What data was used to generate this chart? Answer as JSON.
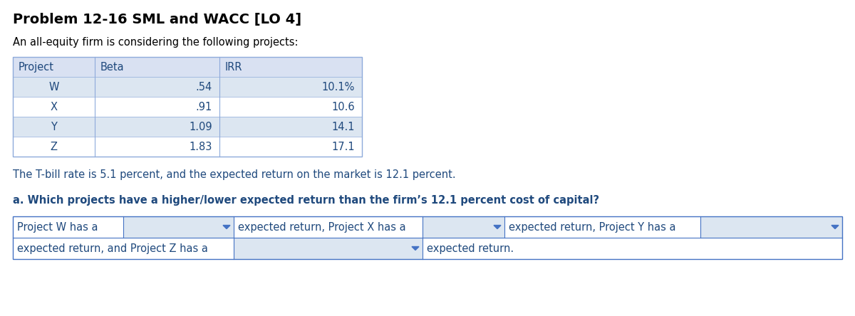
{
  "title": "Problem 12-16 SML and WACC [LO 4]",
  "subtitle": "An all-equity firm is considering the following projects:",
  "table_headers": [
    "Project",
    "Beta",
    "IRR"
  ],
  "table_rows": [
    [
      "W",
      ".54",
      "10.1%"
    ],
    [
      "X",
      ".91",
      "10.6"
    ],
    [
      "Y",
      "1.09",
      "14.1"
    ],
    [
      "Z",
      "1.83",
      "17.1"
    ]
  ],
  "tbill_text": "The T-bill rate is 5.1 percent, and the expected return on the market is 12.1 percent.",
  "question_a": "a. Which projects have a higher/lower expected return than the firm’s 12.1 percent cost of capital?",
  "answer_row1_col1": "Project W has a",
  "answer_row1_col2": "expected return, Project X has a",
  "answer_row1_col3": "expected return, Project Y has a",
  "answer_row2_col1": "expected return, and Project Z has a",
  "answer_row2_col3": "expected return.",
  "bg_color": "#ffffff",
  "header_bg": "#d9e1f2",
  "row_alt_bg": "#dce6f1",
  "row_bg": "#ffffff",
  "text_color": "#1f497d",
  "title_color": "#000000",
  "table_border_color": "#8eaadb",
  "answer_border_color": "#4472c4",
  "input_bg": "#dce6f1",
  "font_size_title": 14,
  "font_size_body": 10.5,
  "font_size_table": 10.5
}
